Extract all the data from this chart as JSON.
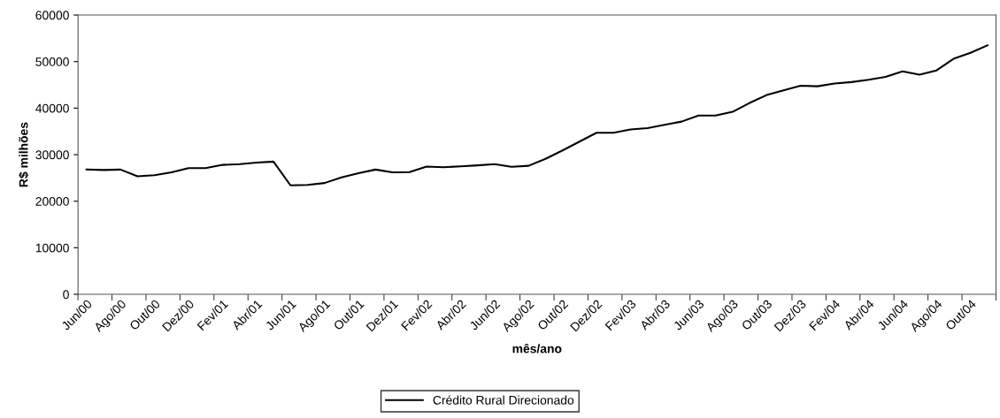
{
  "chart_data": {
    "type": "line",
    "xlabel": "mês/ano",
    "ylabel": "R$ milhões",
    "categories": [
      "Jun/00",
      null,
      "Ago/00",
      null,
      "Out/00",
      null,
      "Dez/00",
      null,
      "Fev/01",
      null,
      "Abr/01",
      null,
      "Jun/01",
      null,
      "Ago/01",
      null,
      "Out/01",
      null,
      "Dez/01",
      null,
      "Fev/02",
      null,
      "Abr/02",
      null,
      "Jun/02",
      null,
      "Ago/02",
      null,
      "Out/02",
      null,
      "Dez/02",
      null,
      "Fev/03",
      null,
      "Abr/03",
      null,
      "Jun/03",
      null,
      "Ago/03",
      null,
      "Out/03",
      null,
      "Dez/03",
      null,
      "Fev/04",
      null,
      "Abr/04",
      null,
      "Jun/04",
      null,
      "Ago/04",
      null,
      "Out/04",
      null
    ],
    "series": [
      {
        "name": "Crédito Rural Direcionado",
        "color": "#000000",
        "values": [
          26800,
          26700,
          26800,
          25350,
          25600,
          26200,
          27100,
          27100,
          27800,
          27950,
          28300,
          28500,
          23400,
          23500,
          23900,
          25100,
          26000,
          26800,
          26200,
          26250,
          27450,
          27300,
          27500,
          27700,
          27950,
          27400,
          27600,
          29100,
          30900,
          32800,
          34700,
          34700,
          35400,
          35700,
          36400,
          37100,
          38400,
          38400,
          39200,
          41100,
          42800,
          43800,
          44800,
          44700,
          45300,
          45600,
          46100,
          46700,
          47900,
          47200,
          48100,
          50600,
          51900,
          53500
        ]
      }
    ],
    "ylim": [
      0,
      60000
    ],
    "yticks": [
      0,
      10000,
      20000,
      30000,
      40000,
      50000,
      60000
    ],
    "grid": false,
    "legend": "bottom",
    "marker": "none",
    "line_style": "solid"
  }
}
